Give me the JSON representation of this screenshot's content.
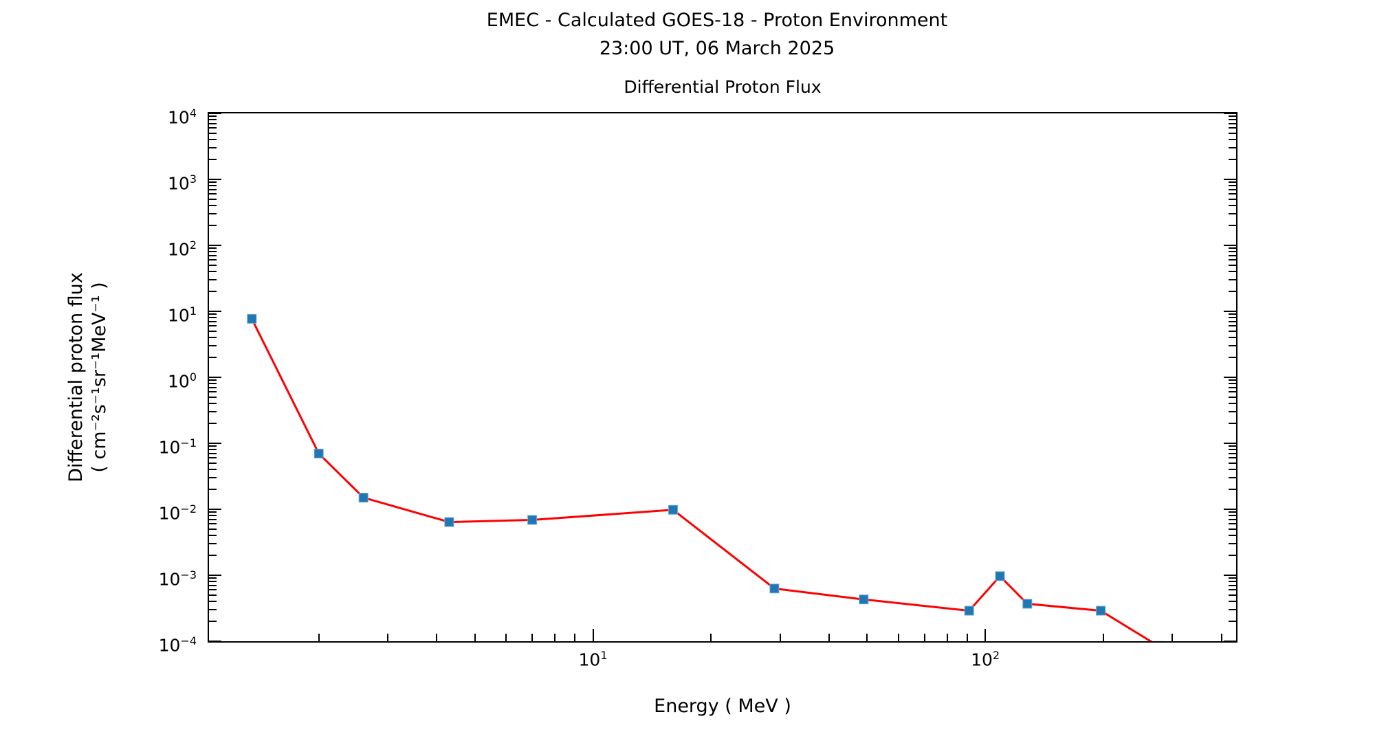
{
  "figure": {
    "suptitle_line1": "EMEC - Calculated GOES-18 - Proton Environment",
    "suptitle_line2": "23:00 UT, 06 March 2025",
    "axes_title": "Differential Proton Flux",
    "xlabel": "Energy ( MeV )",
    "ylabel_line1": "Differential proton flux",
    "ylabel_line2": "( cm⁻²s⁻¹sr⁻¹MeV⁻¹ )"
  },
  "chart_data": {
    "type": "line",
    "title": "Differential Proton Flux",
    "suptitle": "EMEC - Calculated GOES-18 - Proton Environment, 23:00 UT, 06 March 2025",
    "xlabel": "Energy ( MeV )",
    "ylabel": "Differential proton flux ( cm⁻²s⁻¹sr⁻¹MeV⁻¹ )",
    "x_scale": "log",
    "y_scale": "log",
    "xlim": [
      1.05,
      436
    ],
    "ylim": [
      0.0001,
      10000
    ],
    "grid": false,
    "legend_position": "none",
    "x_major_tick_exponents": [
      1,
      2
    ],
    "y_major_tick_exponents": [
      4,
      3,
      2,
      1,
      0,
      -1,
      -2,
      -3,
      -4
    ],
    "colors": {
      "line": "#ff0000",
      "marker_fill": "#1f77b4",
      "marker_edge": "#6fa8d2",
      "axes": "#000000"
    },
    "series": [
      {
        "name": "differential proton flux",
        "marker": "square",
        "x": [
          1.35,
          2.0,
          2.6,
          4.3,
          7.0,
          16,
          29,
          49,
          91,
          109,
          128,
          197,
          276
        ],
        "y": [
          7.7,
          0.07,
          0.015,
          0.0064,
          0.0069,
          0.0098,
          0.00063,
          0.00043,
          0.00029,
          0.00097,
          0.00037,
          0.00029,
          8.5e-05
        ]
      }
    ]
  }
}
